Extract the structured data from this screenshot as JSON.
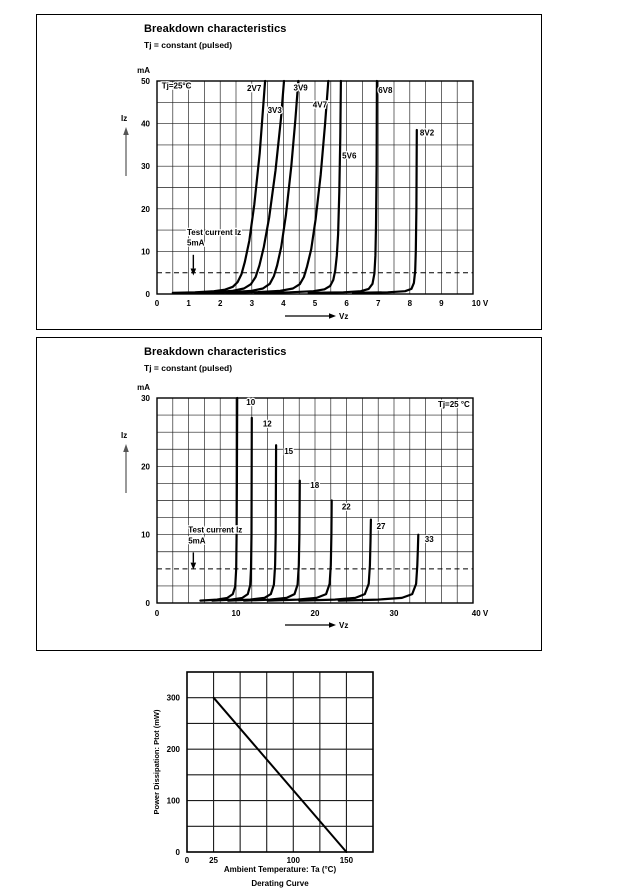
{
  "page": {
    "background": "#ffffff",
    "ink": "#000000"
  },
  "chart_data": [
    {
      "type": "line",
      "title": "Breakdown characteristics",
      "subtitle": "Tj = constant (pulsed)",
      "corner_label": {
        "text": "Tj=25°C",
        "x": 0.15,
        "y": 48.2,
        "anchor": "start"
      },
      "y_unit": "mA",
      "x_unit": "V",
      "y_axis_name": "Iz",
      "xlabel_arrow": "Vz",
      "xlim": [
        0,
        10
      ],
      "ylim": [
        0,
        50
      ],
      "x_grid_step": 0.5,
      "y_grid_step": 5,
      "x_ticks": [
        0,
        1,
        2,
        3,
        4,
        5,
        6,
        7,
        8,
        9,
        10
      ],
      "y_ticks": [
        0,
        10,
        20,
        30,
        40,
        50
      ],
      "grid": "on",
      "dashed_line_y": 5,
      "test_current": {
        "lines": [
          "Test current Iz",
          "5mA"
        ],
        "text_x": 0.95,
        "text_y1": 13.9,
        "text_y2": 11.4,
        "arrow_x": 1.15,
        "arrow_y_from": 9.2,
        "arrow_y_to": 6.0
      },
      "series": [
        {
          "name": "2V7",
          "points": [
            [
              0.5,
              0.25
            ],
            [
              1.2,
              0.4
            ],
            [
              1.8,
              0.65
            ],
            [
              2.15,
              1.0
            ],
            [
              2.4,
              1.7
            ],
            [
              2.55,
              2.8
            ],
            [
              2.67,
              4.6
            ],
            [
              2.78,
              7.5
            ],
            [
              2.92,
              12.5
            ],
            [
              3.08,
              21
            ],
            [
              3.25,
              33
            ],
            [
              3.42,
              50
            ]
          ]
        },
        {
          "name": "3V3",
          "points": [
            [
              0.9,
              0.25
            ],
            [
              1.8,
              0.45
            ],
            [
              2.4,
              0.75
            ],
            [
              2.75,
              1.3
            ],
            [
              2.97,
              2.3
            ],
            [
              3.12,
              4.0
            ],
            [
              3.24,
              6.7
            ],
            [
              3.38,
              11
            ],
            [
              3.55,
              18
            ],
            [
              3.75,
              29
            ],
            [
              3.92,
              41
            ],
            [
              4.02,
              50
            ]
          ]
        },
        {
          "name": "3V9",
          "points": [
            [
              1.5,
              0.25
            ],
            [
              2.4,
              0.45
            ],
            [
              3.0,
              0.75
            ],
            [
              3.35,
              1.3
            ],
            [
              3.57,
              2.4
            ],
            [
              3.7,
              4.2
            ],
            [
              3.8,
              6.7
            ],
            [
              3.93,
              11
            ],
            [
              4.08,
              18.5
            ],
            [
              4.25,
              30
            ],
            [
              4.38,
              41
            ],
            [
              4.47,
              50
            ]
          ]
        },
        {
          "name": "4V7",
          "points": [
            [
              2.2,
              0.25
            ],
            [
              3.2,
              0.45
            ],
            [
              3.9,
              0.75
            ],
            [
              4.3,
              1.3
            ],
            [
              4.52,
              2.3
            ],
            [
              4.65,
              4.0
            ],
            [
              4.75,
              6.5
            ],
            [
              4.88,
              10.5
            ],
            [
              5.02,
              17.5
            ],
            [
              5.18,
              28
            ],
            [
              5.32,
              40
            ],
            [
              5.42,
              50
            ]
          ]
        },
        {
          "name": "5V6",
          "points": [
            [
              3.1,
              0.25
            ],
            [
              4.2,
              0.4
            ],
            [
              4.95,
              0.65
            ],
            [
              5.3,
              1.1
            ],
            [
              5.48,
              1.9
            ],
            [
              5.58,
              3.3
            ],
            [
              5.64,
              5.5
            ],
            [
              5.69,
              9
            ],
            [
              5.73,
              14
            ],
            [
              5.77,
              24
            ],
            [
              5.8,
              37
            ],
            [
              5.82,
              50
            ]
          ]
        },
        {
          "name": "6V8",
          "points": [
            [
              4.8,
              0.25
            ],
            [
              5.9,
              0.4
            ],
            [
              6.45,
              0.65
            ],
            [
              6.7,
              1.2
            ],
            [
              6.82,
              2.4
            ],
            [
              6.88,
              4.8
            ],
            [
              6.91,
              9
            ],
            [
              6.93,
              16
            ],
            [
              6.95,
              30
            ],
            [
              6.96,
              50
            ]
          ]
        },
        {
          "name": "8V2",
          "points": [
            [
              6.2,
              0.25
            ],
            [
              7.3,
              0.4
            ],
            [
              7.85,
              0.65
            ],
            [
              8.05,
              1.2
            ],
            [
              8.13,
              2.6
            ],
            [
              8.17,
              5.5
            ],
            [
              8.19,
              10
            ],
            [
              8.21,
              20
            ],
            [
              8.22,
              38.5
            ]
          ]
        }
      ],
      "series_labels": [
        {
          "text": "2V7",
          "x": 2.85,
          "y": 47.6
        },
        {
          "text": "3V3",
          "x": 3.5,
          "y": 42.5
        },
        {
          "text": "3V9",
          "x": 4.32,
          "y": 47.8
        },
        {
          "text": "4V7",
          "x": 4.93,
          "y": 43.8
        },
        {
          "text": "5V6",
          "x": 5.86,
          "y": 31.8
        },
        {
          "text": "6V8",
          "x": 7.0,
          "y": 47.2
        },
        {
          "text": "8V2",
          "x": 8.32,
          "y": 37.2
        }
      ]
    },
    {
      "type": "line",
      "title": "Breakdown characteristics",
      "subtitle": "Tj = constant (pulsed)",
      "corner_label": {
        "text": "Tj=25 °C",
        "x": 39.6,
        "y": 28.7,
        "anchor": "end"
      },
      "y_unit": "mA",
      "x_unit": "V",
      "y_axis_name": "Iz",
      "xlabel_arrow": "Vz",
      "xlim": [
        0,
        40
      ],
      "ylim": [
        0,
        30
      ],
      "x_grid_step": 2,
      "y_grid_step": 2.5,
      "x_ticks": [
        0,
        10,
        20,
        30,
        40
      ],
      "y_ticks": [
        0,
        10,
        20,
        30
      ],
      "grid": "on",
      "dashed_line_y": 5,
      "test_current": {
        "lines": [
          "Test current Iz",
          "5mA"
        ],
        "text_x": 3.95,
        "text_y1": 10.3,
        "text_y2": 8.7,
        "arrow_x": 4.6,
        "arrow_y_from": 7.4,
        "arrow_y_to": 5.9
      },
      "series": [
        {
          "name": "10",
          "points": [
            [
              5.5,
              0.35
            ],
            [
              7.6,
              0.5
            ],
            [
              8.9,
              0.75
            ],
            [
              9.6,
              1.3
            ],
            [
              9.9,
              2.4
            ],
            [
              10.02,
              5
            ],
            [
              10.08,
              10
            ],
            [
              10.12,
              18
            ],
            [
              10.15,
              30
            ]
          ]
        },
        {
          "name": "12",
          "points": [
            [
              7.0,
              0.35
            ],
            [
              9.4,
              0.5
            ],
            [
              10.8,
              0.75
            ],
            [
              11.5,
              1.3
            ],
            [
              11.8,
              2.6
            ],
            [
              11.9,
              5
            ],
            [
              11.96,
              10
            ],
            [
              12.0,
              27.1
            ]
          ]
        },
        {
          "name": "15",
          "points": [
            [
              9.0,
              0.35
            ],
            [
              11.8,
              0.5
            ],
            [
              13.6,
              0.75
            ],
            [
              14.4,
              1.3
            ],
            [
              14.8,
              2.7
            ],
            [
              14.95,
              5.5
            ],
            [
              15.02,
              10
            ],
            [
              15.07,
              23.1
            ]
          ]
        },
        {
          "name": "18",
          "points": [
            [
              11.0,
              0.35
            ],
            [
              14.3,
              0.5
            ],
            [
              16.4,
              0.75
            ],
            [
              17.4,
              1.3
            ],
            [
              17.8,
              2.7
            ],
            [
              17.95,
              5.5
            ],
            [
              18.02,
              10
            ],
            [
              18.07,
              17.9
            ]
          ]
        },
        {
          "name": "22",
          "points": [
            [
              14.0,
              0.35
            ],
            [
              17.8,
              0.5
            ],
            [
              20.2,
              0.75
            ],
            [
              21.4,
              1.3
            ],
            [
              21.85,
              2.8
            ],
            [
              22.0,
              5.5
            ],
            [
              22.08,
              10
            ],
            [
              22.12,
              15.0
            ]
          ]
        },
        {
          "name": "27",
          "points": [
            [
              18.0,
              0.35
            ],
            [
              22.5,
              0.5
            ],
            [
              25.1,
              0.75
            ],
            [
              26.3,
              1.3
            ],
            [
              26.8,
              2.8
            ],
            [
              26.95,
              5.5
            ],
            [
              27.02,
              9
            ],
            [
              27.07,
              12.2
            ]
          ]
        },
        {
          "name": "33",
          "points": [
            [
              23.0,
              0.35
            ],
            [
              28.0,
              0.5
            ],
            [
              31.0,
              0.75
            ],
            [
              32.3,
              1.3
            ],
            [
              32.8,
              2.8
            ],
            [
              32.95,
              5.5
            ],
            [
              33.02,
              8
            ],
            [
              33.07,
              10.0
            ]
          ]
        }
      ],
      "series_labels": [
        {
          "text": "10",
          "x": 11.3,
          "y": 29.0
        },
        {
          "text": "12",
          "x": 13.4,
          "y": 25.8
        },
        {
          "text": "15",
          "x": 16.1,
          "y": 21.8
        },
        {
          "text": "18",
          "x": 19.4,
          "y": 16.8
        },
        {
          "text": "22",
          "x": 23.4,
          "y": 13.7
        },
        {
          "text": "27",
          "x": 27.8,
          "y": 10.8
        },
        {
          "text": "33",
          "x": 33.9,
          "y": 8.9
        }
      ]
    },
    {
      "type": "line",
      "title": "Derating Curve",
      "ylabel": "Power Dissipation: Ptot (mW)",
      "xlabel": "Ambient Temperature: Ta (°C)",
      "caption": "Derating Curve",
      "xlim": [
        0,
        175
      ],
      "ylim": [
        0,
        350
      ],
      "x_grid_step": 25,
      "y_grid_step": 50,
      "x_ticks": [
        0,
        25,
        100,
        150
      ],
      "y_ticks": [
        0,
        100,
        200,
        300
      ],
      "grid": "on",
      "series": [
        {
          "name": "derating-line",
          "points": [
            [
              25,
              300
            ],
            [
              150,
              0
            ]
          ]
        }
      ],
      "series_labels": []
    }
  ]
}
